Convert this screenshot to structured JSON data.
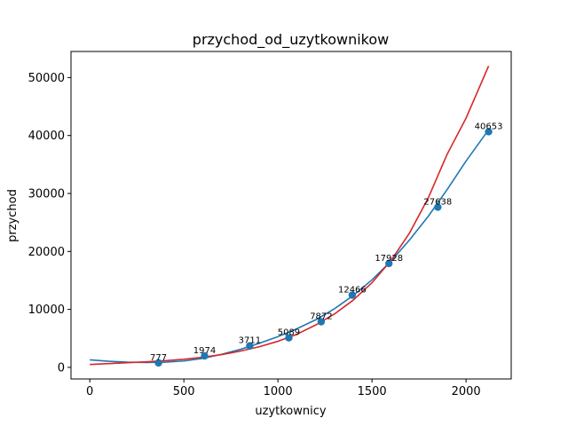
{
  "chart_data": {
    "type": "scatter",
    "title": "przychod_od_uzytkownikow",
    "xlabel": "uzytkownicy",
    "ylabel": "przychod",
    "xlim": [
      -100,
      2240
    ],
    "ylim": [
      -2000,
      54500
    ],
    "x_ticks": [
      0,
      500,
      1000,
      1500,
      2000
    ],
    "y_ticks": [
      0,
      10000,
      20000,
      30000,
      40000,
      50000
    ],
    "grid": false,
    "colors": {
      "points": "#1f77b4",
      "fit_blue": "#1f77b4",
      "fit_red": "#d62728"
    },
    "points": [
      {
        "x": 365,
        "y": 777,
        "label": "777"
      },
      {
        "x": 610,
        "y": 1974,
        "label": "1974"
      },
      {
        "x": 850,
        "y": 3711,
        "label": "3711"
      },
      {
        "x": 1058,
        "y": 5089,
        "label": "5089"
      },
      {
        "x": 1230,
        "y": 7872,
        "label": "7872"
      },
      {
        "x": 1395,
        "y": 12466,
        "label": "12466"
      },
      {
        "x": 1590,
        "y": 17928,
        "label": "17928"
      },
      {
        "x": 1850,
        "y": 27638,
        "label": "27638"
      },
      {
        "x": 2120,
        "y": 40653,
        "label": "40653"
      }
    ],
    "series": [
      {
        "type": "line",
        "color": "#1f77b4",
        "x": [
          0,
          100,
          200,
          300,
          400,
          500,
          600,
          700,
          800,
          900,
          1000,
          1100,
          1200,
          1300,
          1400,
          1500,
          1600,
          1700,
          1800,
          1900,
          2000,
          2120
        ],
        "y": [
          1300,
          1050,
          900,
          850,
          900,
          1100,
          1550,
          2250,
          3100,
          4150,
          5300,
          6650,
          8200,
          10100,
          12400,
          15100,
          18300,
          22000,
          26100,
          30700,
          35600,
          41000
        ]
      },
      {
        "type": "line",
        "color": "#d62728",
        "x": [
          0,
          100,
          200,
          300,
          400,
          500,
          600,
          700,
          800,
          900,
          1000,
          1100,
          1200,
          1300,
          1400,
          1500,
          1600,
          1700,
          1800,
          1900,
          2000,
          2120
        ],
        "y": [
          500,
          650,
          800,
          950,
          1150,
          1400,
          1750,
          2200,
          2800,
          3550,
          4500,
          5700,
          7300,
          9200,
          11600,
          14600,
          18400,
          23200,
          29300,
          36800,
          43000,
          52000
        ]
      }
    ]
  }
}
